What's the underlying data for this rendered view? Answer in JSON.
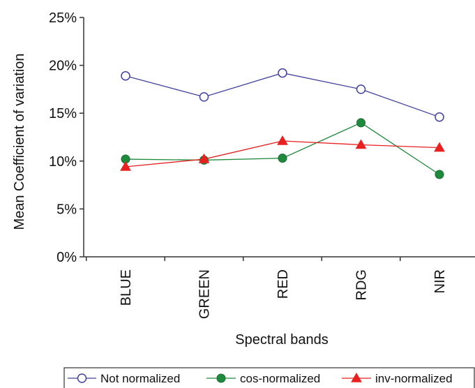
{
  "chart_data": {
    "type": "line",
    "categories": [
      "BLUE",
      "GREEN",
      "RED",
      "RDG",
      "NIR"
    ],
    "xlabel": "Spectral bands",
    "ylabel": "Mean Coefficient of variation",
    "ylim": [
      0,
      25
    ],
    "yticks": [
      0,
      5,
      10,
      15,
      20,
      25
    ],
    "ytick_labels": [
      "0%",
      "5%",
      "10%",
      "15%",
      "20%",
      "25%"
    ],
    "grid": false,
    "legend_position": "bottom",
    "series": [
      {
        "name": "Not normalized",
        "color": "#4040a0",
        "marker": "open-circle",
        "values": [
          18.9,
          16.7,
          19.2,
          17.5,
          14.6
        ]
      },
      {
        "name": "cos-normalized",
        "color": "#1e8a3c",
        "marker": "filled-circle",
        "values": [
          10.2,
          10.1,
          10.3,
          14.0,
          8.6
        ]
      },
      {
        "name": "inv-normalized",
        "color": "#e82020",
        "marker": "triangle",
        "values": [
          9.4,
          10.2,
          12.1,
          11.7,
          11.4
        ]
      }
    ]
  }
}
